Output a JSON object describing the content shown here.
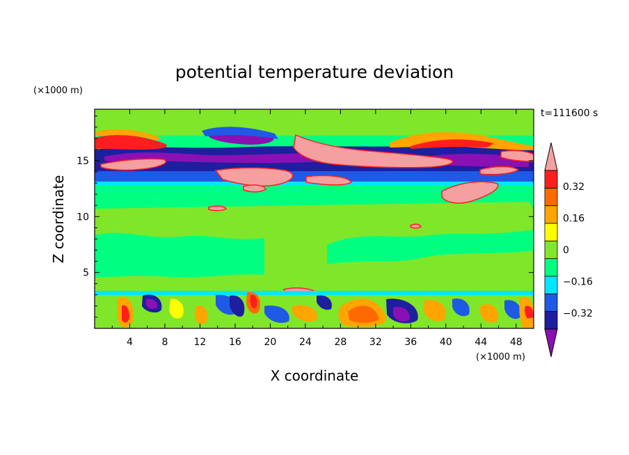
{
  "chart_data": {
    "type": "heatmap",
    "title": "potential temperature deviation",
    "xlabel": "X coordinate",
    "ylabel": "Z coordinate",
    "x_unit": "(×1000 m)",
    "y_unit": "(×1000 m)",
    "time_label": "t=111600 s",
    "xlim": [
      0,
      50
    ],
    "ylim": [
      0,
      19.6
    ],
    "x_ticks": [
      4,
      8,
      12,
      16,
      20,
      24,
      28,
      32,
      36,
      40,
      44,
      48
    ],
    "y_ticks": [
      5,
      10,
      15
    ],
    "colorbar": {
      "levels": [
        -0.4,
        -0.32,
        -0.24,
        -0.16,
        -0.08,
        0,
        0.08,
        0.16,
        0.24,
        0.32,
        0.4
      ],
      "tick_values": [
        0.32,
        0.16,
        0,
        -0.16,
        -0.32
      ],
      "tick_labels": [
        "0.32",
        "0.16",
        "0",
        "−0.16",
        "−0.32"
      ],
      "colors": [
        "#8a10b4",
        "#1e1ea0",
        "#1e5ae6",
        "#00e6ff",
        "#00ff80",
        "#80e62a",
        "#ffff00",
        "#ffa500",
        "#ff6a00",
        "#ff1e1e",
        "#f4a0a0"
      ],
      "extend": "both"
    },
    "bands": [
      {
        "z": [
          0,
          3.6
        ],
        "level": "mixed -0.4..0.4, strong small-scale eddies"
      },
      {
        "z": [
          3.6,
          12
        ],
        "level": "0..0.08 with near-zero patches"
      },
      {
        "z": [
          12,
          13
        ],
        "level": "-0.08..0"
      },
      {
        "z": [
          13,
          15.5
        ],
        "level": "-0.32..-0.16"
      },
      {
        "z": [
          15.5,
          17.5
        ],
        "level": "mixed -0.4 and 0.3..>0.4"
      },
      {
        "z": [
          17.5,
          19.6
        ],
        "level": "0..0.08"
      }
    ]
  }
}
